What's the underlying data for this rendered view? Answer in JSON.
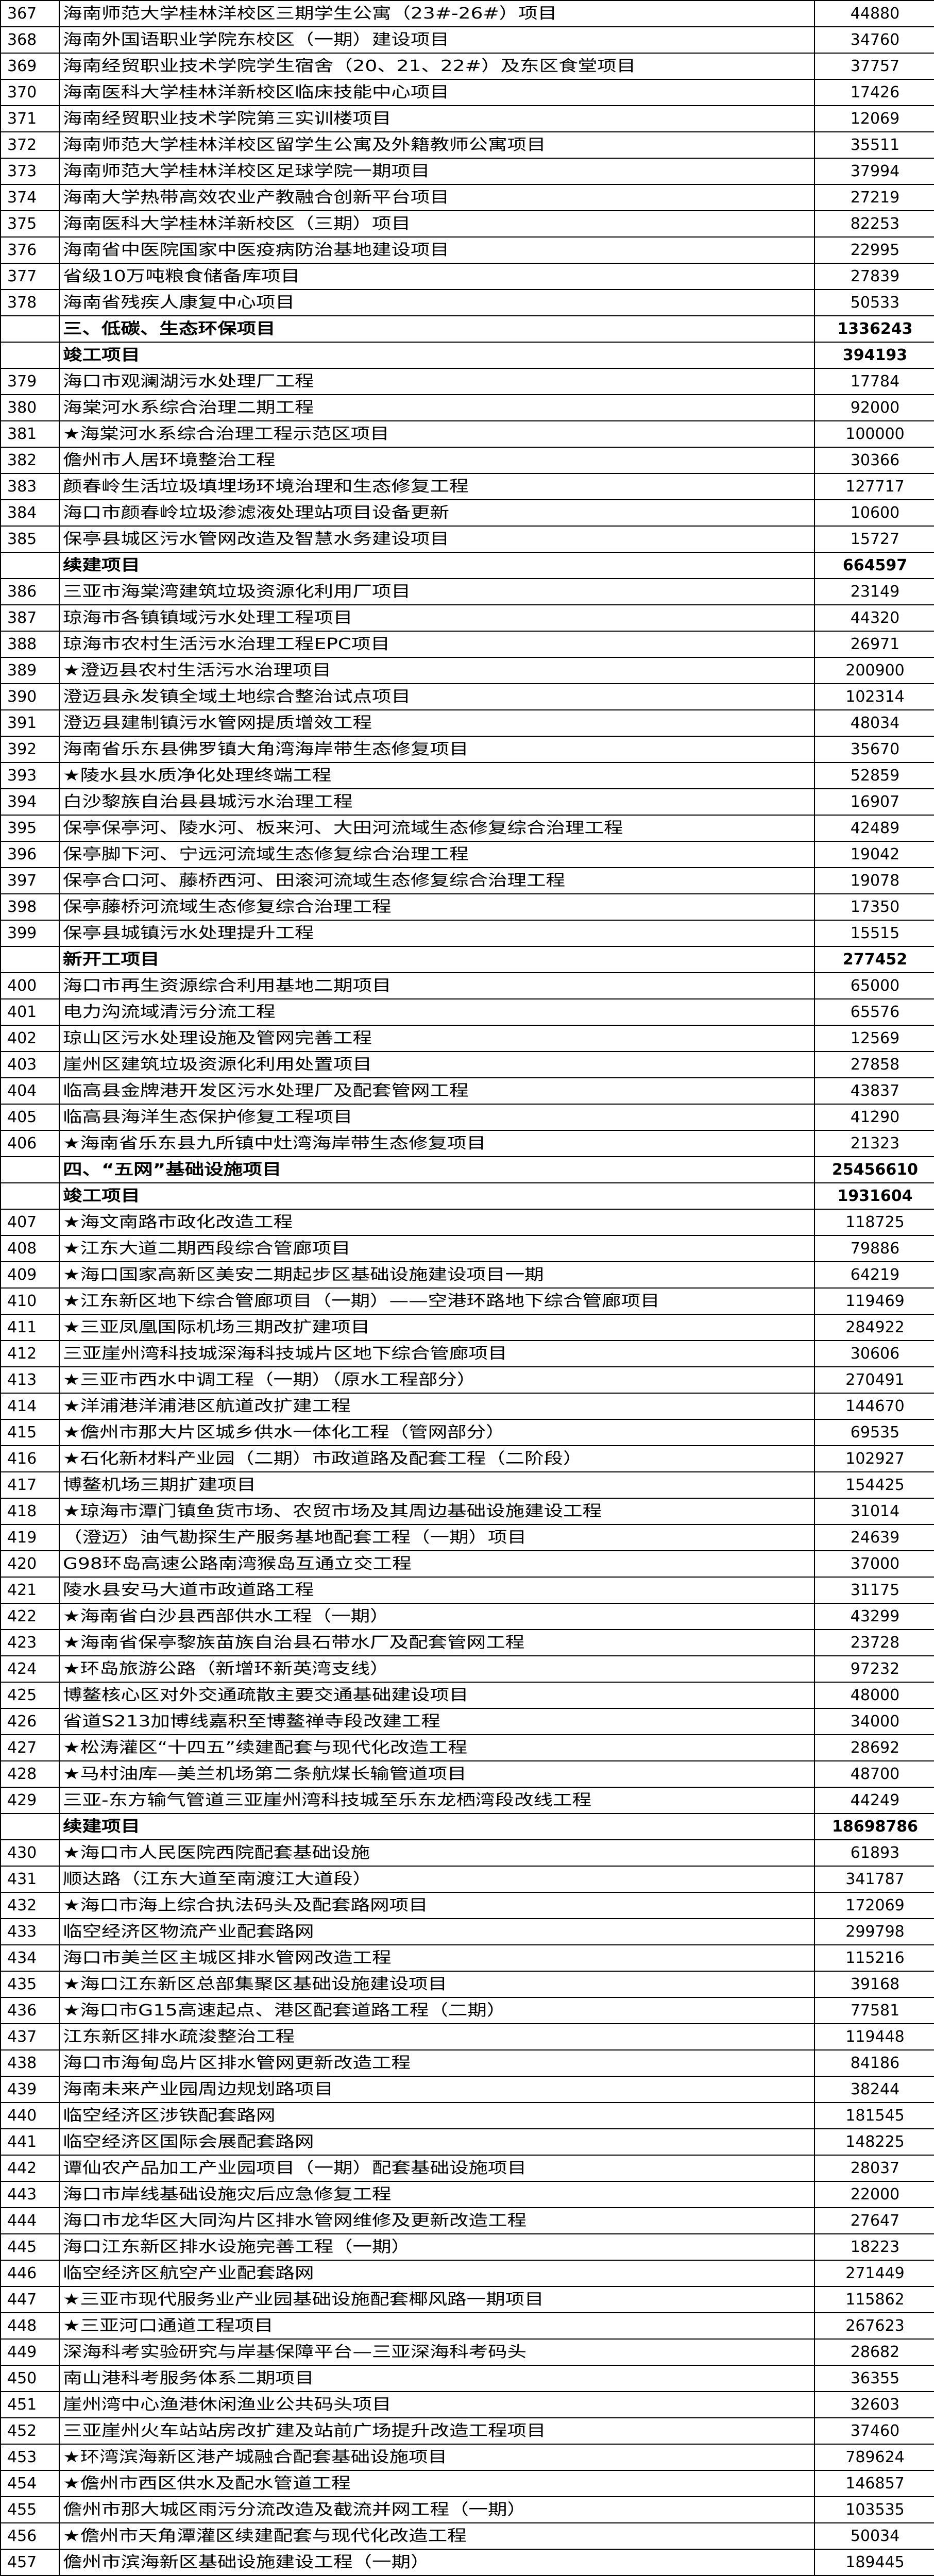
{
  "rows": [
    {
      "no": "367",
      "name": "海南师范大学桂林洋校区三期学生公寓（23#-26#）项目",
      "value": "44880"
    },
    {
      "no": "368",
      "name": "海南外国语职业学院东校区（一期）建设项目",
      "value": "34760"
    },
    {
      "no": "369",
      "name": "海南经贸职业技术学院学生宿舍（20、21、22#）及东区食堂项目",
      "value": "37757"
    },
    {
      "no": "370",
      "name": "海南医科大学桂林洋新校区临床技能中心项目",
      "value": "17426"
    },
    {
      "no": "371",
      "name": "海南经贸职业技术学院第三实训楼项目",
      "value": "12069"
    },
    {
      "no": "372",
      "name": "海南师范大学桂林洋校区留学生公寓及外籍教师公寓项目",
      "value": "35511"
    },
    {
      "no": "373",
      "name": "海南师范大学桂林洋校区足球学院一期项目",
      "value": "37994"
    },
    {
      "no": "374",
      "name": "海南大学热带高效农业产教融合创新平台项目",
      "value": "27219"
    },
    {
      "no": "375",
      "name": "海南医科大学桂林洋新校区（三期）项目",
      "value": "82253"
    },
    {
      "no": "376",
      "name": "海南省中医院国家中医疫病防治基地建设项目",
      "value": "22995"
    },
    {
      "no": "377",
      "name": "省级10万吨粮食储备库项目",
      "value": "27839"
    },
    {
      "no": "378",
      "name": "海南省残疾人康复中心项目",
      "value": "50533"
    },
    {
      "no": "",
      "name": "三、低碳、生态环保项目",
      "value": "1336243",
      "section": true
    },
    {
      "no": "",
      "name": "竣工项目",
      "value": "394193",
      "section": true
    },
    {
      "no": "379",
      "name": "海口市观澜湖污水处理厂工程",
      "value": "17784"
    },
    {
      "no": "380",
      "name": "海棠河水系综合治理二期工程",
      "value": "92000"
    },
    {
      "no": "381",
      "name": "★海棠河水系综合治理工程示范区项目",
      "value": "100000"
    },
    {
      "no": "382",
      "name": "儋州市人居环境整治工程",
      "value": "30366"
    },
    {
      "no": "383",
      "name": "颜春岭生活垃圾填埋场环境治理和生态修复工程",
      "value": "127717"
    },
    {
      "no": "384",
      "name": "海口市颜春岭垃圾渗滤液处理站项目设备更新",
      "value": "10600"
    },
    {
      "no": "385",
      "name": "保亭县城区污水管网改造及智慧水务建设项目",
      "value": "15727"
    },
    {
      "no": "",
      "name": "续建项目",
      "value": "664597",
      "section": true
    },
    {
      "no": "386",
      "name": "三亚市海棠湾建筑垃圾资源化利用厂项目",
      "value": "23149"
    },
    {
      "no": "387",
      "name": "琼海市各镇镇域污水处理工程项目",
      "value": "44320"
    },
    {
      "no": "388",
      "name": "琼海市农村生活污水治理工程EPC项目",
      "value": "26971"
    },
    {
      "no": "389",
      "name": "★澄迈县农村生活污水治理项目",
      "value": "200900"
    },
    {
      "no": "390",
      "name": "澄迈县永发镇全域土地综合整治试点项目",
      "value": "102314"
    },
    {
      "no": "391",
      "name": "澄迈县建制镇污水管网提质增效工程",
      "value": "48034"
    },
    {
      "no": "392",
      "name": "海南省乐东县佛罗镇大角湾海岸带生态修复项目",
      "value": "35670"
    },
    {
      "no": "393",
      "name": "★陵水县水质净化处理终端工程",
      "value": "52859"
    },
    {
      "no": "394",
      "name": "白沙黎族自治县县城污水治理工程",
      "value": "16907"
    },
    {
      "no": "395",
      "name": "保亭保亭河、陵水河、板来河、大田河流域生态修复综合治理工程",
      "value": "42489"
    },
    {
      "no": "396",
      "name": "保亭脚下河、宁远河流域生态修复综合治理工程",
      "value": "19042"
    },
    {
      "no": "397",
      "name": "保亭合口河、藤桥西河、田滚河流域生态修复综合治理工程",
      "value": "19078"
    },
    {
      "no": "398",
      "name": "保亭藤桥河流域生态修复综合治理工程",
      "value": "17350"
    },
    {
      "no": "399",
      "name": "保亭县城镇污水处理提升工程",
      "value": "15515"
    },
    {
      "no": "",
      "name": "新开工项目",
      "value": "277452",
      "section": true
    },
    {
      "no": "400",
      "name": "海口市再生资源综合利用基地二期项目",
      "value": "65000"
    },
    {
      "no": "401",
      "name": "电力沟流域清污分流工程",
      "value": "65576"
    },
    {
      "no": "402",
      "name": "琼山区污水处理设施及管网完善工程",
      "value": "12569"
    },
    {
      "no": "403",
      "name": "崖州区建筑垃圾资源化利用处置项目",
      "value": "27858"
    },
    {
      "no": "404",
      "name": "临高县金牌港开发区污水处理厂及配套管网工程",
      "value": "43837"
    },
    {
      "no": "405",
      "name": "临高县海洋生态保护修复工程项目",
      "value": "41290"
    },
    {
      "no": "406",
      "name": "★海南省乐东县九所镇中灶湾海岸带生态修复项目",
      "value": "21323"
    },
    {
      "no": "",
      "name": "四、“五网”基础设施项目",
      "value": "25456610",
      "section": true
    },
    {
      "no": "",
      "name": "竣工项目",
      "value": "1931604",
      "section": true
    },
    {
      "no": "407",
      "name": "★海文南路市政化改造工程",
      "value": "118725"
    },
    {
      "no": "408",
      "name": "★江东大道二期西段综合管廊项目",
      "value": "79886"
    },
    {
      "no": "409",
      "name": "★海口国家高新区美安二期起步区基础设施建设项目一期",
      "value": "64219"
    },
    {
      "no": "410",
      "name": "★江东新区地下综合管廊项目（一期）——空港环路地下综合管廊项目",
      "value": "119469"
    },
    {
      "no": "411",
      "name": "★三亚凤凰国际机场三期改扩建项目",
      "value": "284922"
    },
    {
      "no": "412",
      "name": "三亚崖州湾科技城深海科技城片区地下综合管廊项目",
      "value": "30606"
    },
    {
      "no": "413",
      "name": "★三亚市西水中调工程（一期）（原水工程部分）",
      "value": "270491"
    },
    {
      "no": "414",
      "name": "★洋浦港洋浦港区航道改扩建工程",
      "value": "144670"
    },
    {
      "no": "415",
      "name": "★儋州市那大片区城乡供水一体化工程（管网部分）",
      "value": "69535"
    },
    {
      "no": "416",
      "name": "★石化新材料产业园（二期）市政道路及配套工程（二阶段）",
      "value": "102927"
    },
    {
      "no": "417",
      "name": "博鳌机场三期扩建项目",
      "value": "154425"
    },
    {
      "no": "418",
      "name": "★琼海市潭门镇鱼货市场、农贸市场及其周边基础设施建设工程",
      "value": "31014"
    },
    {
      "no": "419",
      "name": "（澄迈）油气勘探生产服务基地配套工程（一期）项目",
      "value": "24639"
    },
    {
      "no": "420",
      "name": "G98环岛高速公路南湾猴岛互通立交工程",
      "value": "37000"
    },
    {
      "no": "421",
      "name": "陵水县安马大道市政道路工程",
      "value": "31175"
    },
    {
      "no": "422",
      "name": "★海南省白沙县西部供水工程（一期）",
      "value": "43299"
    },
    {
      "no": "423",
      "name": "★海南省保亭黎族苗族自治县石带水厂及配套管网工程",
      "value": "23728"
    },
    {
      "no": "424",
      "name": "★环岛旅游公路（新增环新英湾支线）",
      "value": "97232"
    },
    {
      "no": "425",
      "name": "博鳌核心区对外交通疏散主要交通基础建设项目",
      "value": "48000"
    },
    {
      "no": "426",
      "name": "省道S213加博线嘉积至博鳌禅寺段改建工程",
      "value": "34000"
    },
    {
      "no": "427",
      "name": "★松涛灌区“十四五”续建配套与现代化改造工程",
      "value": "28692"
    },
    {
      "no": "428",
      "name": "★马村油库—美兰机场第二条航煤长输管道项目",
      "value": "48700"
    },
    {
      "no": "429",
      "name": "三亚-东方输气管道三亚崖州湾科技城至乐东龙栖湾段改线工程",
      "value": "44249"
    },
    {
      "no": "",
      "name": "续建项目",
      "value": "18698786",
      "section": true
    },
    {
      "no": "430",
      "name": "★海口市人民医院西院配套基础设施",
      "value": "61893"
    },
    {
      "no": "431",
      "name": "顺达路（江东大道至南渡江大道段）",
      "value": "341787"
    },
    {
      "no": "432",
      "name": "★海口市海上综合执法码头及配套路网项目",
      "value": "172069"
    },
    {
      "no": "433",
      "name": "临空经济区物流产业配套路网",
      "value": "299798"
    },
    {
      "no": "434",
      "name": "海口市美兰区主城区排水管网改造工程",
      "value": "115216"
    },
    {
      "no": "435",
      "name": "★海口江东新区总部集聚区基础设施建设项目",
      "value": "39168"
    },
    {
      "no": "436",
      "name": "★海口市G15高速起点、港区配套道路工程（二期）",
      "value": "77581"
    },
    {
      "no": "437",
      "name": "江东新区排水疏浚整治工程",
      "value": "119448"
    },
    {
      "no": "438",
      "name": "海口市海甸岛片区排水管网更新改造工程",
      "value": "84186"
    },
    {
      "no": "439",
      "name": "海南未来产业园周边规划路项目",
      "value": "38244"
    },
    {
      "no": "440",
      "name": "临空经济区涉铁配套路网",
      "value": "181545"
    },
    {
      "no": "441",
      "name": "临空经济区国际会展配套路网",
      "value": "148225"
    },
    {
      "no": "442",
      "name": "谭仙农产品加工产业园项目（一期）配套基础设施项目",
      "value": "28037"
    },
    {
      "no": "443",
      "name": "海口市岸线基础设施灾后应急修复工程",
      "value": "22000"
    },
    {
      "no": "444",
      "name": "海口市龙华区大同沟片区排水管网维修及更新改造工程",
      "value": "27647"
    },
    {
      "no": "445",
      "name": "海口江东新区排水设施完善工程（一期）",
      "value": "18223"
    },
    {
      "no": "446",
      "name": "临空经济区航空产业配套路网",
      "value": "271449"
    },
    {
      "no": "447",
      "name": "★三亚市现代服务业产业园基础设施配套椰风路一期项目",
      "value": "115862"
    },
    {
      "no": "448",
      "name": "★三亚河口通道工程项目",
      "value": "267623"
    },
    {
      "no": "449",
      "name": "深海科考实验研究与岸基保障平台—三亚深海科考码头",
      "value": "28682"
    },
    {
      "no": "450",
      "name": "南山港科考服务体系二期项目",
      "value": "36355"
    },
    {
      "no": "451",
      "name": "崖州湾中心渔港休闲渔业公共码头项目",
      "value": "32603"
    },
    {
      "no": "452",
      "name": "三亚崖州火车站站房改扩建及站前广场提升改造工程项目",
      "value": "37460"
    },
    {
      "no": "453",
      "name": "★环湾滨海新区港产城融合配套基础设施项目",
      "value": "789624"
    },
    {
      "no": "454",
      "name": "★儋州市西区供水及配水管道工程",
      "value": "146857"
    },
    {
      "no": "455",
      "name": "儋州市那大城区雨污分流改造及截流并网工程（一期）",
      "value": "103535"
    },
    {
      "no": "456",
      "name": "★儋州市天角潭灌区续建配套与现代化改造工程",
      "value": "50034"
    },
    {
      "no": "457",
      "name": "儋州市滨海新区基础设施建设工程（一期）",
      "value": "189445"
    }
  ]
}
